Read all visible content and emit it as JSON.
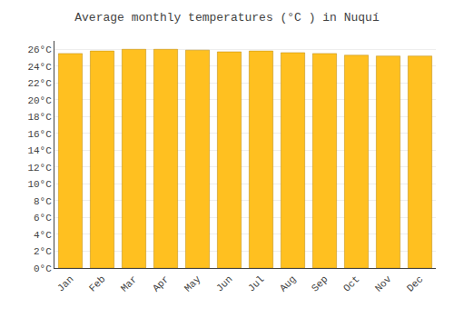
{
  "chart_data": {
    "type": "bar",
    "title": "Average monthly temperatures (°C ) in Nuquí",
    "categories": [
      "Jan",
      "Feb",
      "Mar",
      "Apr",
      "May",
      "Jun",
      "Jul",
      "Aug",
      "Sep",
      "Oct",
      "Nov",
      "Dec"
    ],
    "values": [
      25.5,
      25.8,
      26.0,
      26.0,
      25.9,
      25.7,
      25.8,
      25.6,
      25.5,
      25.3,
      25.2,
      25.2
    ],
    "color": "#FFC020",
    "ylim": [
      0,
      27
    ],
    "yticks": [
      {
        "value": 0,
        "label": "0°C"
      },
      {
        "value": 2,
        "label": "2°C"
      },
      {
        "value": 4,
        "label": "4°C"
      },
      {
        "value": 6,
        "label": "6°C"
      },
      {
        "value": 8,
        "label": "8°C"
      },
      {
        "value": 10,
        "label": "10°C"
      },
      {
        "value": 12,
        "label": "12°C"
      },
      {
        "value": 14,
        "label": "14°C"
      },
      {
        "value": 16,
        "label": "16°C"
      },
      {
        "value": 18,
        "label": "18°C"
      },
      {
        "value": 20,
        "label": "20°C"
      },
      {
        "value": 22,
        "label": "22°C"
      },
      {
        "value": 24,
        "label": "24°C"
      },
      {
        "value": 26,
        "label": "26°C"
      }
    ],
    "grid": true
  }
}
